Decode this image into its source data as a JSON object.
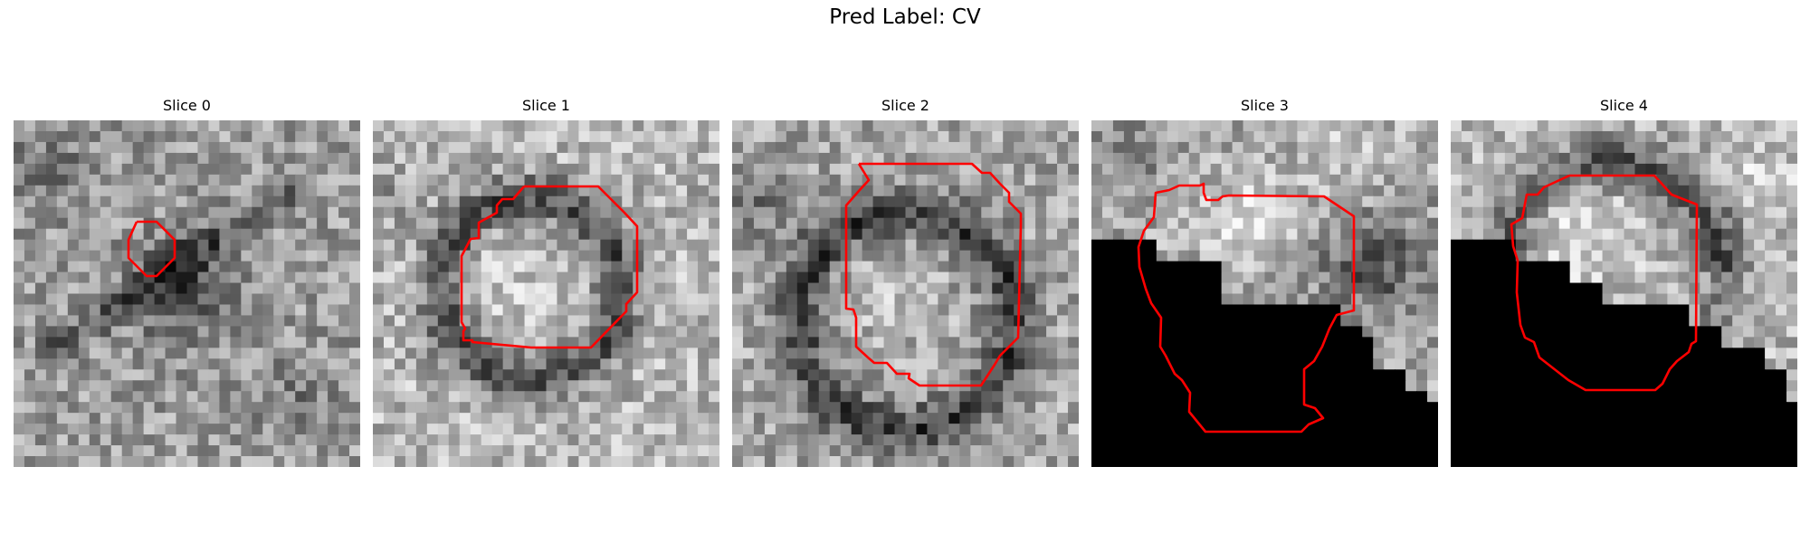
{
  "figure": {
    "title": "Pred Label: CV",
    "contour_color": "#ff0000",
    "colormap": "grayscale",
    "axes_visible": false
  },
  "slices": [
    {
      "title": "Slice 0"
    },
    {
      "title": "Slice 1"
    },
    {
      "title": "Slice 2"
    },
    {
      "title": "Slice 3"
    },
    {
      "title": "Slice 4"
    }
  ]
}
